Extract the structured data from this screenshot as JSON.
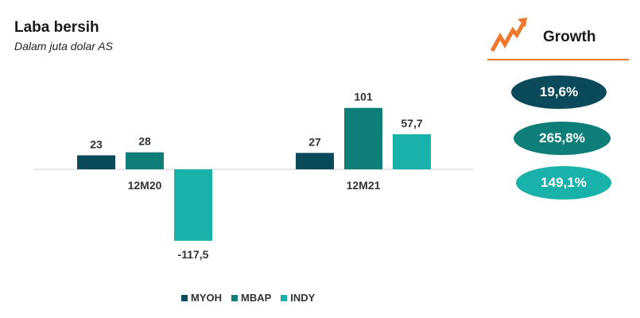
{
  "chart_data": {
    "type": "bar",
    "title": "Laba bersih",
    "subtitle": "Dalam juta dolar AS",
    "categories": [
      "12M20",
      "12M21"
    ],
    "series": [
      {
        "name": "MYOH",
        "values": [
          23,
          27
        ],
        "labels": [
          "23",
          "27"
        ],
        "color": "#0b4a5a"
      },
      {
        "name": "MBAP",
        "values": [
          28,
          101
        ],
        "labels": [
          "28",
          "101"
        ],
        "color": "#0e7e78"
      },
      {
        "name": "INDY",
        "values": [
          -117.5,
          57.7
        ],
        "labels": [
          "-117,5",
          "57,7"
        ],
        "color": "#19b2aa"
      }
    ],
    "legend_position": "bottom",
    "grid": false
  },
  "growth": {
    "title": "Growth",
    "icon": "growth-arrow-icon",
    "accent_color": "#f0782a",
    "values": [
      {
        "label": "19,6%",
        "color": "#0b4a5a"
      },
      {
        "label": "265,8%",
        "color": "#0e7e78"
      },
      {
        "label": "149,1%",
        "color": "#19b2aa"
      }
    ]
  }
}
